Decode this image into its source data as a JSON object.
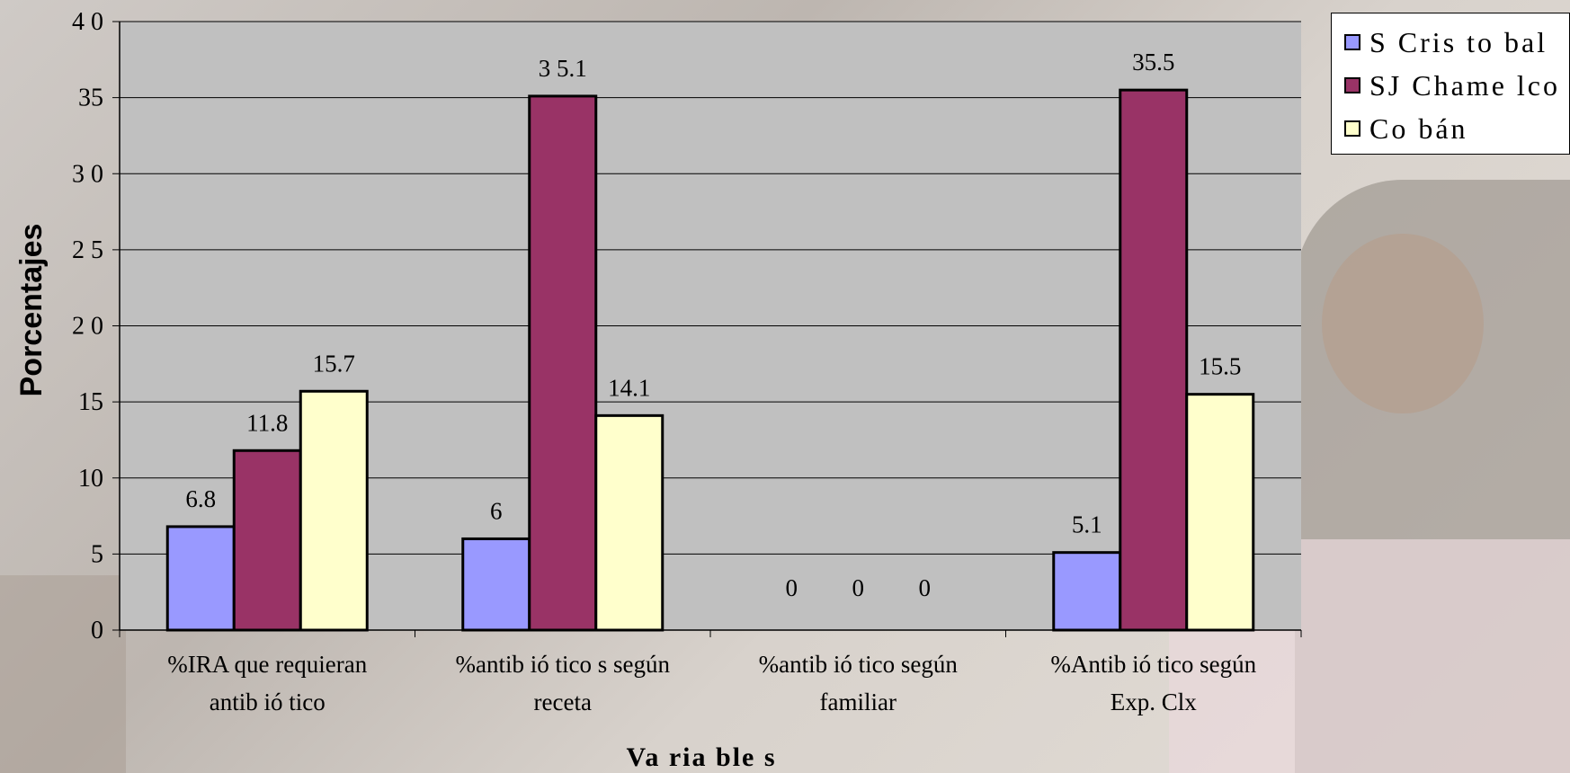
{
  "colors": {
    "plot_bg": "#c0c0c0",
    "series": [
      "#9999ff",
      "#993366",
      "#ffffcc"
    ]
  },
  "chart_data": {
    "type": "bar",
    "title": "",
    "xlabel": "Va ria ble s",
    "ylabel": "Porcentajes",
    "ylim": [
      0,
      40
    ],
    "yticks": [
      "0",
      "5",
      "10",
      "15",
      "2 0",
      "2 5",
      "3 0",
      "35",
      "4 0"
    ],
    "grid": true,
    "legend_position": "top-right",
    "categories": [
      [
        "%IRA que requieran",
        "antib ió tico"
      ],
      [
        "%antib ió tico s según",
        "receta"
      ],
      [
        "%antib ió tico según",
        "familiar"
      ],
      [
        "%Antib ió tico según",
        "Exp. Clx"
      ]
    ],
    "series": [
      {
        "name": "S Cris to bal",
        "values": [
          6.8,
          6,
          0,
          5.1
        ],
        "labels": [
          "6.8",
          "6",
          "0",
          "5.1"
        ]
      },
      {
        "name": "SJ Chame lco",
        "values": [
          11.8,
          35.1,
          0,
          35.5
        ],
        "labels": [
          "11.8",
          "3 5.1",
          "0",
          "35.5"
        ]
      },
      {
        "name": "Co bán",
        "values": [
          15.7,
          14.1,
          0,
          15.5
        ],
        "labels": [
          "15.7",
          "14.1",
          "0",
          "15.5"
        ]
      }
    ]
  }
}
